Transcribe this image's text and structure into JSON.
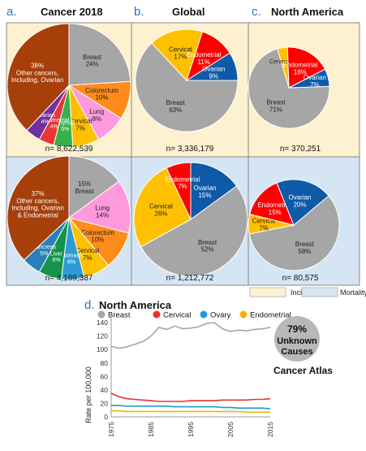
{
  "panels": {
    "a": {
      "letter": "a.",
      "title": "Cancer 2018"
    },
    "b": {
      "letter": "b.",
      "title": "Global"
    },
    "c": {
      "letter": "c.",
      "title": "North America"
    },
    "d": {
      "letter": "d.",
      "title": "North America"
    }
  },
  "legend_bg": {
    "incidence": "Incidence",
    "mortality": "Mortality"
  },
  "colors": {
    "incidence_bg": "#fdf1d0",
    "mortality_bg": "#d5e5f3",
    "breast": "#a6a6a6",
    "cervical": "#ffc000",
    "endometrial": "#ff0000",
    "ovarian": "#0f5aa8",
    "colorectum": "#ff8c1a",
    "lung": "#ff99dd",
    "other": "#a63f0a",
    "thyroid": "#34b14a",
    "stomach": "#2e9bd1",
    "liver": "#14944a",
    "pancreas": "#2a7fb8",
    "uterus": "#e83535",
    "ovary_small": "#7030a0"
  },
  "chart_data": [
    {
      "type": "pie",
      "panel": "a",
      "row": "incidence",
      "n_label": "n= 8,622,539",
      "slices": [
        {
          "name": "Breast",
          "label": "Breast\n24%",
          "value": 24,
          "color": "#a6a6a6"
        },
        {
          "name": "Colorectum",
          "label": "Colorectum\n10%",
          "value": 10,
          "color": "#ff8c1a"
        },
        {
          "name": "Lung",
          "label": "Lung\n8%",
          "value": 8,
          "color": "#ff99dd"
        },
        {
          "name": "Cervical",
          "label": "Cervical\n7%",
          "value": 7,
          "color": "#ffc000"
        },
        {
          "name": "Thyroid",
          "label": "Thyroid\n5%",
          "value": 5,
          "color": "#34b14a"
        },
        {
          "name": "Endometrial",
          "label": "Endometrial\n4%",
          "value": 4,
          "color": "#e83535"
        },
        {
          "name": "Ovarian",
          "label": "Ovarian\n4%",
          "value": 4,
          "color": "#7030a0"
        },
        {
          "name": "Other",
          "label": "38%\nOther cancers,\nIncluding, Ovarian",
          "value": 38,
          "color": "#a63f0a"
        }
      ]
    },
    {
      "type": "pie",
      "panel": "a",
      "row": "mortality",
      "n_label": "n= 4,169,387",
      "slices": [
        {
          "name": "Breast",
          "label": "15%\nBreast",
          "value": 15,
          "color": "#a6a6a6"
        },
        {
          "name": "Lung",
          "label": "Lung\n14%",
          "value": 14,
          "color": "#ff99dd"
        },
        {
          "name": "Colorectum",
          "label": "Colorectum\n10%",
          "value": 10,
          "color": "#ff8c1a"
        },
        {
          "name": "Cervical",
          "label": "Cervical\n7%",
          "value": 7,
          "color": "#ffc000"
        },
        {
          "name": "Stomach",
          "label": "Stomach\n6%",
          "value": 6,
          "color": "#2e9bd1"
        },
        {
          "name": "Liver",
          "label": "Liver\n6%",
          "value": 6,
          "color": "#14944a"
        },
        {
          "name": "Pancreas",
          "label": "Pancreas\n5%",
          "value": 5,
          "color": "#2a7fb8"
        },
        {
          "name": "Other",
          "label": "37%\nOther cancers,\nIncluding, Ovarian\n& Endometrial",
          "value": 37,
          "color": "#a63f0a"
        }
      ]
    },
    {
      "type": "pie",
      "panel": "b",
      "row": "incidence",
      "n_label": "n= 3,336,179",
      "slices": [
        {
          "name": "Breast",
          "label": "Breast\n63%",
          "value": 63,
          "color": "#a6a6a6"
        },
        {
          "name": "Cervical",
          "label": "Cervical\n17%",
          "value": 17,
          "color": "#ffc000"
        },
        {
          "name": "Endometrial",
          "label": "Endometrial\n11%",
          "value": 11,
          "color": "#ff0000"
        },
        {
          "name": "Ovarian",
          "label": "Ovarian\n9%",
          "value": 9,
          "color": "#0f5aa8"
        }
      ]
    },
    {
      "type": "pie",
      "panel": "b",
      "row": "mortality",
      "n_label": "n= 1,212,772",
      "slices": [
        {
          "name": "Ovarian",
          "label": "Ovarian\n15%",
          "value": 15,
          "color": "#0f5aa8"
        },
        {
          "name": "Breast",
          "label": "Breast\n52%",
          "value": 52,
          "color": "#a6a6a6"
        },
        {
          "name": "Cervical",
          "label": "Cervical\n26%",
          "value": 26,
          "color": "#ffc000"
        },
        {
          "name": "Endometrial",
          "label": "Endometrial\n7%",
          "value": 7,
          "color": "#ff0000"
        }
      ]
    },
    {
      "type": "pie",
      "panel": "c",
      "row": "incidence",
      "n_label": "n= 370,251",
      "slices": [
        {
          "name": "Breast",
          "label": "Breast\n71%",
          "value": 71,
          "color": "#a6a6a6"
        },
        {
          "name": "Cervical",
          "label": "Cervical 4%",
          "value": 4,
          "color": "#ffc000"
        },
        {
          "name": "Endometrial",
          "label": "Endometrial\n18%",
          "value": 18,
          "color": "#ff0000"
        },
        {
          "name": "Ovarian",
          "label": "Ovarian\n7%",
          "value": 7,
          "color": "#0f5aa8"
        }
      ]
    },
    {
      "type": "pie",
      "panel": "c",
      "row": "mortality",
      "n_label": "n= 80,575",
      "slices": [
        {
          "name": "Breast",
          "label": "Breast\n58%",
          "value": 58,
          "color": "#a6a6a6"
        },
        {
          "name": "Cervical",
          "label": "Cervical\n7%",
          "value": 7,
          "color": "#ffc000"
        },
        {
          "name": "Endometrial",
          "label": "Endometrial\n15%",
          "value": 15,
          "color": "#ff0000"
        },
        {
          "name": "Ovarian",
          "label": "Ovarian\n20%",
          "value": 20,
          "color": "#0f5aa8"
        }
      ]
    },
    {
      "type": "line",
      "panel": "d",
      "title": "North America",
      "xlabel": "",
      "ylabel": "Rate per 100,000",
      "xlim": [
        1975,
        2015
      ],
      "ylim": [
        0,
        145
      ],
      "xticks": [
        1975,
        1985,
        1995,
        2005,
        2015
      ],
      "yticks": [
        0,
        20,
        40,
        60,
        80,
        100,
        120,
        140
      ],
      "grid": false,
      "legend": "top",
      "x": [
        1975,
        1977,
        1979,
        1981,
        1983,
        1985,
        1987,
        1989,
        1991,
        1993,
        1995,
        1997,
        1999,
        2001,
        2003,
        2005,
        2007,
        2009,
        2011,
        2013,
        2015
      ],
      "series": [
        {
          "name": "Breast",
          "color": "#a6a6a6",
          "values": [
            105,
            102,
            104,
            108,
            112,
            120,
            133,
            130,
            135,
            131,
            132,
            134,
            139,
            140,
            131,
            127,
            129,
            128,
            130,
            131,
            133
          ]
        },
        {
          "name": "Cervical",
          "color": "#e8322e",
          "values": [
            35,
            30,
            27,
            26,
            25,
            24,
            23,
            23,
            23,
            23,
            24,
            24,
            24,
            24,
            25,
            25,
            25,
            25,
            26,
            26,
            27
          ]
        },
        {
          "name": "Ovary",
          "color": "#1e9bd7",
          "values": [
            17,
            17,
            16,
            16,
            16,
            16,
            16,
            16,
            15,
            15,
            15,
            15,
            15,
            15,
            14,
            14,
            13,
            13,
            13,
            13,
            12
          ]
        },
        {
          "name": "Endometrial",
          "color": "#f0b400",
          "values": [
            9,
            9,
            8,
            8,
            8,
            8,
            8,
            8,
            8,
            8,
            8,
            8,
            8,
            8,
            8,
            8,
            8,
            7,
            7,
            7,
            7
          ]
        }
      ],
      "callout": {
        "pct": "79%",
        "line1": "Unknown",
        "line2": "Causes"
      },
      "source": "Cancer Atlas"
    }
  ]
}
